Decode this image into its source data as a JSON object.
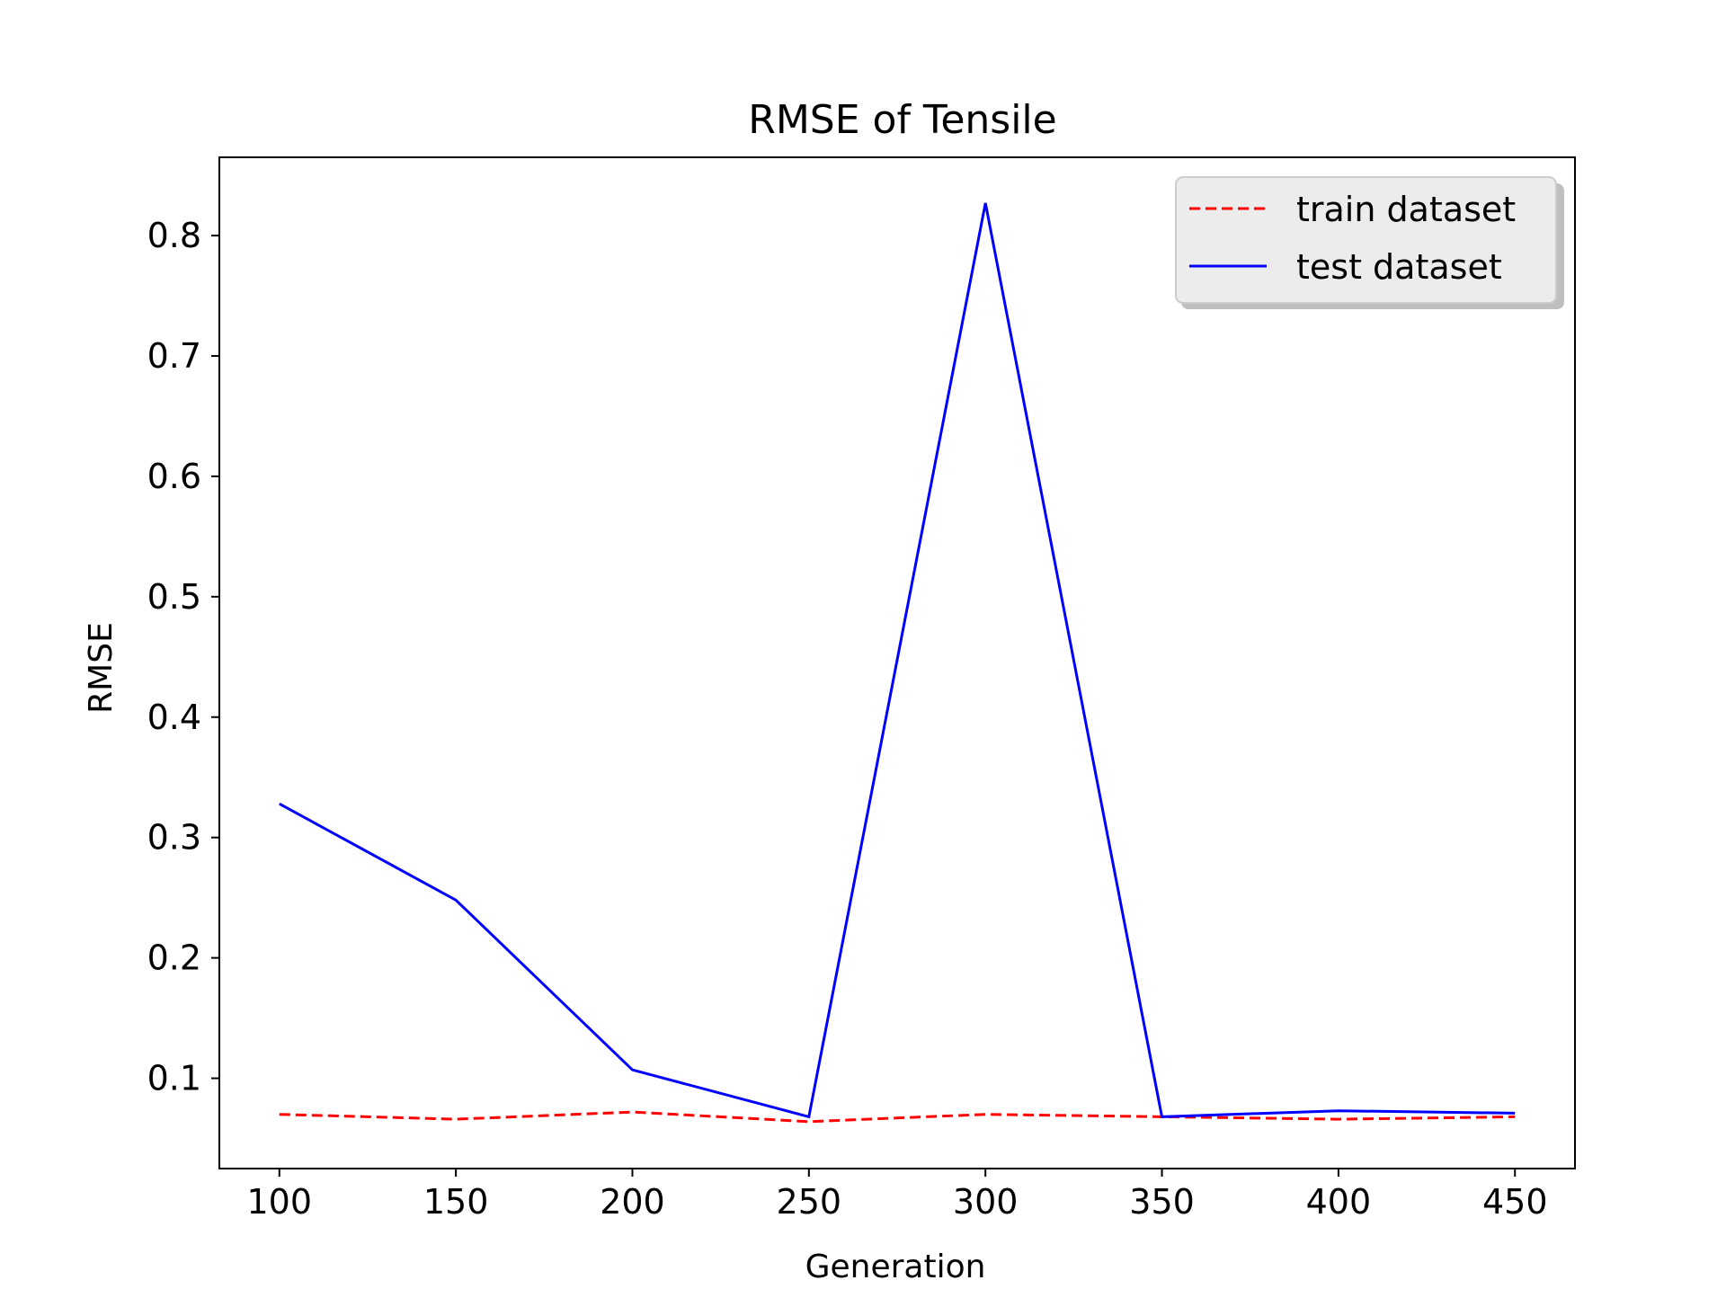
{
  "chart_data": {
    "type": "line",
    "title": "RMSE of Tensile",
    "xlabel": "Generation",
    "ylabel": "RMSE",
    "x": [
      100,
      150,
      200,
      250,
      300,
      350,
      400,
      450
    ],
    "xlim": [
      83,
      467
    ],
    "ylim": [
      0.025,
      0.865
    ],
    "xticks": [
      "100",
      "150",
      "200",
      "250",
      "300",
      "350",
      "400",
      "450"
    ],
    "yticks": [
      "0.1",
      "0.2",
      "0.3",
      "0.4",
      "0.5",
      "0.6",
      "0.7",
      "0.8"
    ],
    "grid": false,
    "legend_position": "top-right",
    "series": [
      {
        "name": "train dataset",
        "color": "#ff0000",
        "style": "dashed",
        "values": [
          0.07,
          0.066,
          0.072,
          0.064,
          0.07,
          0.068,
          0.066,
          0.068
        ]
      },
      {
        "name": "test dataset",
        "color": "#0000ff",
        "style": "solid",
        "values": [
          0.328,
          0.248,
          0.107,
          0.068,
          0.827,
          0.068,
          0.073,
          0.071
        ]
      }
    ]
  }
}
